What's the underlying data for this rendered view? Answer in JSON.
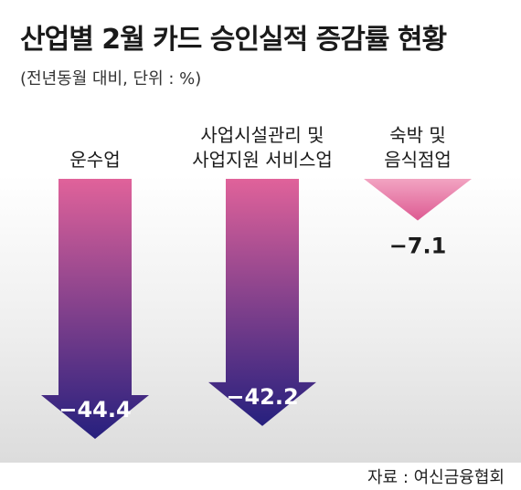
{
  "title": "산업별 2월 카드 승인실적 증감률 현황",
  "subtitle": "(전년동월 대비, 단위 : %)",
  "source": "자료 : 여신금융협회",
  "chart_data": {
    "type": "bar",
    "title": "산업별 2월 카드 승인실적 증감률 현황",
    "subtitle": "(전년동월 대비, 단위 : %)",
    "unit": "%",
    "categories": [
      [
        "운수업"
      ],
      [
        "사업시설관리 및",
        "사업지원 서비스업"
      ],
      [
        "숙박 및",
        "음식점업"
      ]
    ],
    "values": [
      -44.4,
      -42.2,
      -7.1
    ],
    "labels": [
      "−44.4",
      "−42.2",
      "−7.1"
    ],
    "ylim": [
      -48,
      0
    ],
    "colors": {
      "top": "#e0629a",
      "bottom": "#26207e",
      "short_top": "#f2a4c2",
      "short_bottom": "#dd5a92"
    }
  }
}
